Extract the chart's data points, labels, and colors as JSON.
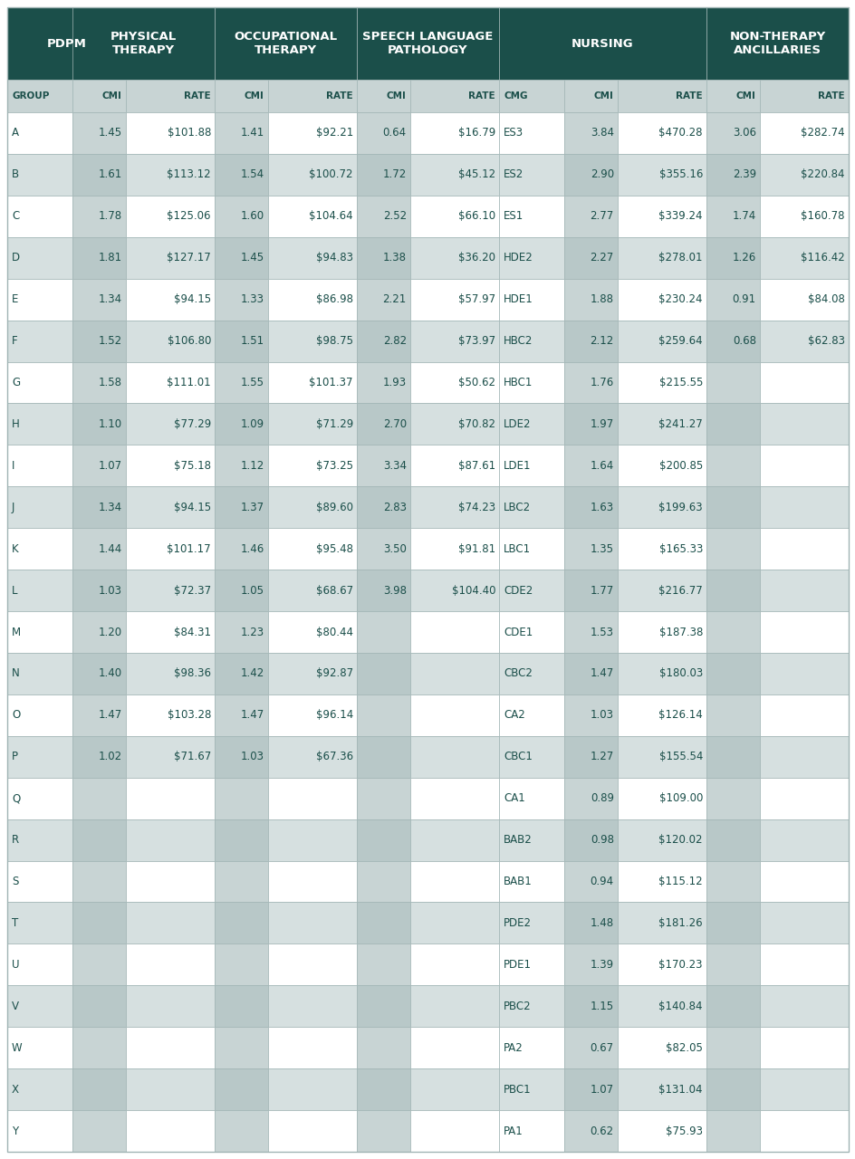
{
  "header_bg": "#1b4f4a",
  "header_text": "#ffffff",
  "subheader_bg": "#c8d4d4",
  "subheader_text": "#1b4f4a",
  "row_bg_light": "#ffffff",
  "row_bg_dark": "#d6e0e0",
  "col_bg_alt": "#c8d4d4",
  "cell_text": "#1b4f4a",
  "border_color": "#a0b4b4",
  "rows": [
    {
      "group": "A",
      "pt_cmi": "1.45",
      "pt_rate": "$101.88",
      "ot_cmi": "1.41",
      "ot_rate": "$92.21",
      "slp_cmi": "0.64",
      "slp_rate": "$16.79",
      "cmg": "ES3",
      "n_cmi": "3.84",
      "n_rate": "$470.28",
      "nta_cmi": "3.06",
      "nta_rate": "$282.74"
    },
    {
      "group": "B",
      "pt_cmi": "1.61",
      "pt_rate": "$113.12",
      "ot_cmi": "1.54",
      "ot_rate": "$100.72",
      "slp_cmi": "1.72",
      "slp_rate": "$45.12",
      "cmg": "ES2",
      "n_cmi": "2.90",
      "n_rate": "$355.16",
      "nta_cmi": "2.39",
      "nta_rate": "$220.84"
    },
    {
      "group": "C",
      "pt_cmi": "1.78",
      "pt_rate": "$125.06",
      "ot_cmi": "1.60",
      "ot_rate": "$104.64",
      "slp_cmi": "2.52",
      "slp_rate": "$66.10",
      "cmg": "ES1",
      "n_cmi": "2.77",
      "n_rate": "$339.24",
      "nta_cmi": "1.74",
      "nta_rate": "$160.78"
    },
    {
      "group": "D",
      "pt_cmi": "1.81",
      "pt_rate": "$127.17",
      "ot_cmi": "1.45",
      "ot_rate": "$94.83",
      "slp_cmi": "1.38",
      "slp_rate": "$36.20",
      "cmg": "HDE2",
      "n_cmi": "2.27",
      "n_rate": "$278.01",
      "nta_cmi": "1.26",
      "nta_rate": "$116.42"
    },
    {
      "group": "E",
      "pt_cmi": "1.34",
      "pt_rate": "$94.15",
      "ot_cmi": "1.33",
      "ot_rate": "$86.98",
      "slp_cmi": "2.21",
      "slp_rate": "$57.97",
      "cmg": "HDE1",
      "n_cmi": "1.88",
      "n_rate": "$230.24",
      "nta_cmi": "0.91",
      "nta_rate": "$84.08"
    },
    {
      "group": "F",
      "pt_cmi": "1.52",
      "pt_rate": "$106.80",
      "ot_cmi": "1.51",
      "ot_rate": "$98.75",
      "slp_cmi": "2.82",
      "slp_rate": "$73.97",
      "cmg": "HBC2",
      "n_cmi": "2.12",
      "n_rate": "$259.64",
      "nta_cmi": "0.68",
      "nta_rate": "$62.83"
    },
    {
      "group": "G",
      "pt_cmi": "1.58",
      "pt_rate": "$111.01",
      "ot_cmi": "1.55",
      "ot_rate": "$101.37",
      "slp_cmi": "1.93",
      "slp_rate": "$50.62",
      "cmg": "HBC1",
      "n_cmi": "1.76",
      "n_rate": "$215.55",
      "nta_cmi": "",
      "nta_rate": ""
    },
    {
      "group": "H",
      "pt_cmi": "1.10",
      "pt_rate": "$77.29",
      "ot_cmi": "1.09",
      "ot_rate": "$71.29",
      "slp_cmi": "2.70",
      "slp_rate": "$70.82",
      "cmg": "LDE2",
      "n_cmi": "1.97",
      "n_rate": "$241.27",
      "nta_cmi": "",
      "nta_rate": ""
    },
    {
      "group": "I",
      "pt_cmi": "1.07",
      "pt_rate": "$75.18",
      "ot_cmi": "1.12",
      "ot_rate": "$73.25",
      "slp_cmi": "3.34",
      "slp_rate": "$87.61",
      "cmg": "LDE1",
      "n_cmi": "1.64",
      "n_rate": "$200.85",
      "nta_cmi": "",
      "nta_rate": ""
    },
    {
      "group": "J",
      "pt_cmi": "1.34",
      "pt_rate": "$94.15",
      "ot_cmi": "1.37",
      "ot_rate": "$89.60",
      "slp_cmi": "2.83",
      "slp_rate": "$74.23",
      "cmg": "LBC2",
      "n_cmi": "1.63",
      "n_rate": "$199.63",
      "nta_cmi": "",
      "nta_rate": ""
    },
    {
      "group": "K",
      "pt_cmi": "1.44",
      "pt_rate": "$101.17",
      "ot_cmi": "1.46",
      "ot_rate": "$95.48",
      "slp_cmi": "3.50",
      "slp_rate": "$91.81",
      "cmg": "LBC1",
      "n_cmi": "1.35",
      "n_rate": "$165.33",
      "nta_cmi": "",
      "nta_rate": ""
    },
    {
      "group": "L",
      "pt_cmi": "1.03",
      "pt_rate": "$72.37",
      "ot_cmi": "1.05",
      "ot_rate": "$68.67",
      "slp_cmi": "3.98",
      "slp_rate": "$104.40",
      "cmg": "CDE2",
      "n_cmi": "1.77",
      "n_rate": "$216.77",
      "nta_cmi": "",
      "nta_rate": ""
    },
    {
      "group": "M",
      "pt_cmi": "1.20",
      "pt_rate": "$84.31",
      "ot_cmi": "1.23",
      "ot_rate": "$80.44",
      "slp_cmi": "",
      "slp_rate": "",
      "cmg": "CDE1",
      "n_cmi": "1.53",
      "n_rate": "$187.38",
      "nta_cmi": "",
      "nta_rate": ""
    },
    {
      "group": "N",
      "pt_cmi": "1.40",
      "pt_rate": "$98.36",
      "ot_cmi": "1.42",
      "ot_rate": "$92.87",
      "slp_cmi": "",
      "slp_rate": "",
      "cmg": "CBC2",
      "n_cmi": "1.47",
      "n_rate": "$180.03",
      "nta_cmi": "",
      "nta_rate": ""
    },
    {
      "group": "O",
      "pt_cmi": "1.47",
      "pt_rate": "$103.28",
      "ot_cmi": "1.47",
      "ot_rate": "$96.14",
      "slp_cmi": "",
      "slp_rate": "",
      "cmg": "CA2",
      "n_cmi": "1.03",
      "n_rate": "$126.14",
      "nta_cmi": "",
      "nta_rate": ""
    },
    {
      "group": "P",
      "pt_cmi": "1.02",
      "pt_rate": "$71.67",
      "ot_cmi": "1.03",
      "ot_rate": "$67.36",
      "slp_cmi": "",
      "slp_rate": "",
      "cmg": "CBC1",
      "n_cmi": "1.27",
      "n_rate": "$155.54",
      "nta_cmi": "",
      "nta_rate": ""
    },
    {
      "group": "Q",
      "pt_cmi": "",
      "pt_rate": "",
      "ot_cmi": "",
      "ot_rate": "",
      "slp_cmi": "",
      "slp_rate": "",
      "cmg": "CA1",
      "n_cmi": "0.89",
      "n_rate": "$109.00",
      "nta_cmi": "",
      "nta_rate": ""
    },
    {
      "group": "R",
      "pt_cmi": "",
      "pt_rate": "",
      "ot_cmi": "",
      "ot_rate": "",
      "slp_cmi": "",
      "slp_rate": "",
      "cmg": "BAB2",
      "n_cmi": "0.98",
      "n_rate": "$120.02",
      "nta_cmi": "",
      "nta_rate": ""
    },
    {
      "group": "S",
      "pt_cmi": "",
      "pt_rate": "",
      "ot_cmi": "",
      "ot_rate": "",
      "slp_cmi": "",
      "slp_rate": "",
      "cmg": "BAB1",
      "n_cmi": "0.94",
      "n_rate": "$115.12",
      "nta_cmi": "",
      "nta_rate": ""
    },
    {
      "group": "T",
      "pt_cmi": "",
      "pt_rate": "",
      "ot_cmi": "",
      "ot_rate": "",
      "slp_cmi": "",
      "slp_rate": "",
      "cmg": "PDE2",
      "n_cmi": "1.48",
      "n_rate": "$181.26",
      "nta_cmi": "",
      "nta_rate": ""
    },
    {
      "group": "U",
      "pt_cmi": "",
      "pt_rate": "",
      "ot_cmi": "",
      "ot_rate": "",
      "slp_cmi": "",
      "slp_rate": "",
      "cmg": "PDE1",
      "n_cmi": "1.39",
      "n_rate": "$170.23",
      "nta_cmi": "",
      "nta_rate": ""
    },
    {
      "group": "V",
      "pt_cmi": "",
      "pt_rate": "",
      "ot_cmi": "",
      "ot_rate": "",
      "slp_cmi": "",
      "slp_rate": "",
      "cmg": "PBC2",
      "n_cmi": "1.15",
      "n_rate": "$140.84",
      "nta_cmi": "",
      "nta_rate": ""
    },
    {
      "group": "W",
      "pt_cmi": "",
      "pt_rate": "",
      "ot_cmi": "",
      "ot_rate": "",
      "slp_cmi": "",
      "slp_rate": "",
      "cmg": "PA2",
      "n_cmi": "0.67",
      "n_rate": "$82.05",
      "nta_cmi": "",
      "nta_rate": ""
    },
    {
      "group": "X",
      "pt_cmi": "",
      "pt_rate": "",
      "ot_cmi": "",
      "ot_rate": "",
      "slp_cmi": "",
      "slp_rate": "",
      "cmg": "PBC1",
      "n_cmi": "1.07",
      "n_rate": "$131.04",
      "nta_cmi": "",
      "nta_rate": ""
    },
    {
      "group": "Y",
      "pt_cmi": "",
      "pt_rate": "",
      "ot_cmi": "",
      "ot_rate": "",
      "slp_cmi": "",
      "slp_rate": "",
      "cmg": "PA1",
      "n_cmi": "0.62",
      "n_rate": "$75.93",
      "nta_cmi": "",
      "nta_rate": ""
    }
  ]
}
